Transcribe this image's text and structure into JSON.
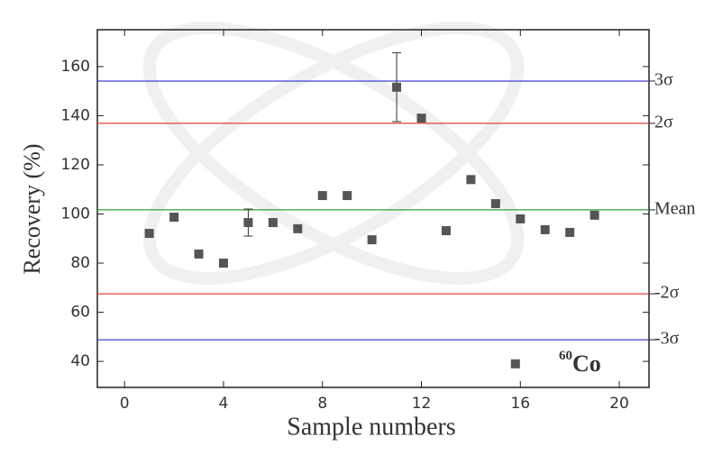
{
  "chart_data": {
    "type": "scatter",
    "xlabel": "Sample numbers",
    "ylabel": "Recovery (%)",
    "annotation": {
      "sup": "60",
      "text": "Co"
    },
    "x": [
      1,
      2,
      3,
      4,
      5,
      6,
      7,
      8,
      9,
      10,
      11,
      12,
      13,
      14,
      15,
      15.8,
      16,
      17,
      18,
      19
    ],
    "values": [
      92.1,
      98.7,
      83.7,
      80,
      96.5,
      96.5,
      94,
      107.5,
      107.5,
      89.5,
      151.6,
      139,
      93.2,
      114,
      104.2,
      39,
      98,
      93.6,
      92.5,
      99.5
    ],
    "errors": [
      null,
      null,
      null,
      null,
      5.5,
      null,
      null,
      null,
      null,
      null,
      14,
      null,
      null,
      null,
      null,
      null,
      null,
      null,
      null,
      null
    ],
    "color": "#555555",
    "xlim": [
      -1.1,
      21.2
    ],
    "xticks": [
      0,
      4,
      8,
      12,
      16,
      20
    ],
    "ylim": [
      29.4,
      175
    ],
    "yticks": [
      40,
      60,
      80,
      100,
      120,
      140,
      160
    ],
    "hlines": [
      {
        "label": "3σ",
        "value": 154.1,
        "color": "#4040d0"
      },
      {
        "label": "2σ",
        "value": 136.9,
        "color": "#e04040"
      },
      {
        "label": "Mean",
        "value": 101.7,
        "color": "#30a030"
      },
      {
        "label": "-2σ",
        "value": 67.5,
        "color": "#e04040"
      },
      {
        "label": "-3σ",
        "value": 48.8,
        "color": "#4040d0"
      }
    ]
  }
}
